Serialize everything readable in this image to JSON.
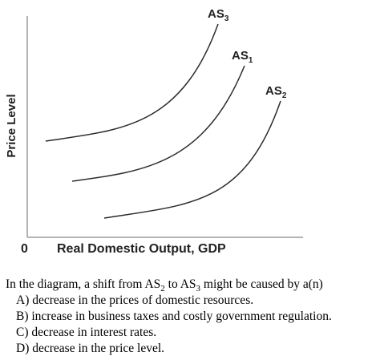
{
  "diagram": {
    "y_axis_label": "Price Level",
    "origin_label": "0",
    "x_axis_label": "Real Domestic Output, GDP",
    "curves": [
      {
        "id": "AS3",
        "label_main": "AS",
        "label_sub": "3"
      },
      {
        "id": "AS1",
        "label_main": "AS",
        "label_sub": "1"
      },
      {
        "id": "AS2",
        "label_main": "AS",
        "label_sub": "2"
      }
    ]
  },
  "question": {
    "stem_part1": "In the diagram, a shift from AS",
    "stem_sub1": "2",
    "stem_part2": " to AS",
    "stem_sub2": "3",
    "stem_part3": " might be caused by a(n)",
    "options": [
      "A) decrease in the prices of domestic resources.",
      "B) increase in business taxes and costly government regulation.",
      "C) decrease in interest rates.",
      "D) decrease in the price level."
    ]
  }
}
